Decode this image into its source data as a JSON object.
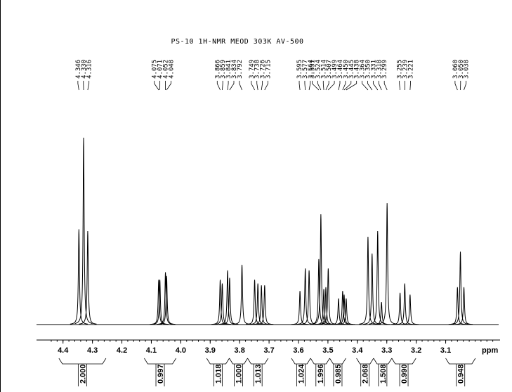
{
  "chart_data": {
    "type": "nmr",
    "title": "PS-10 1H-NMR  MEOD  303K AV-500",
    "x_label": "ppm",
    "xlim": [
      4.49,
      2.92
    ],
    "xticks": [
      4.4,
      4.3,
      4.2,
      4.1,
      {
        "value": 4,
        "label": "4.0"
      },
      3.9,
      3.8,
      3.7,
      3.6,
      3.5,
      3.4,
      3.3,
      3.2,
      3.1
    ],
    "color": "#000000",
    "peaks": [
      {
        "ppm": 4.346,
        "label": "4.346",
        "height": 51
      },
      {
        "ppm": 4.33,
        "label": "4.330",
        "height": 100
      },
      {
        "ppm": 4.316,
        "label": "4.316",
        "height": 50
      },
      {
        "ppm": 4.075,
        "label": "4.075",
        "height": 24
      },
      {
        "ppm": 4.071,
        "label": "4.071",
        "height": 24
      },
      {
        "ppm": 4.052,
        "label": "4.052",
        "height": 28
      },
      {
        "ppm": 4.048,
        "label": "4.048",
        "height": 26
      },
      {
        "ppm": 3.866,
        "label": "3.866",
        "height": 24
      },
      {
        "ppm": 3.859,
        "label": "3.859",
        "height": 22
      },
      {
        "ppm": 3.841,
        "label": "3.841",
        "height": 29
      },
      {
        "ppm": 3.834,
        "label": "3.834",
        "height": 25
      },
      {
        "ppm": 3.792,
        "label": "3.792",
        "height": 32
      },
      {
        "ppm": 3.749,
        "label": "3.749",
        "height": 24
      },
      {
        "ppm": 3.738,
        "label": "3.738",
        "height": 22
      },
      {
        "ppm": 3.726,
        "label": "3.726",
        "height": 21
      },
      {
        "ppm": 3.715,
        "label": "3.715",
        "height": 21
      },
      {
        "ppm": 3.595,
        "label": "3.595",
        "height": 18
      },
      {
        "ppm": 3.577,
        "label": "3.577",
        "height": 30
      },
      {
        "ppm": 3.564,
        "label": "3.564",
        "height": 29
      },
      {
        "ppm": 3.531,
        "label": "3.531",
        "height": 35
      },
      {
        "ppm": 3.524,
        "label": "3.524",
        "height": 59
      },
      {
        "ppm": 3.514,
        "label": "3.514",
        "height": 19
      },
      {
        "ppm": 3.507,
        "label": "3.507",
        "height": 20
      },
      {
        "ppm": 3.499,
        "label": "3.499",
        "height": 30
      },
      {
        "ppm": 3.464,
        "label": "3.464",
        "height": 14
      },
      {
        "ppm": 3.45,
        "label": "3.450",
        "height": 18
      },
      {
        "ppm": 3.445,
        "label": "3.445",
        "height": 16
      },
      {
        "ppm": 3.438,
        "label": "3.438",
        "height": 14
      },
      {
        "ppm": 3.364,
        "label": "3.364",
        "height": 47
      },
      {
        "ppm": 3.35,
        "label": "3.350",
        "height": 38
      },
      {
        "ppm": 3.331,
        "label": "3.331",
        "height": 50
      },
      {
        "ppm": 3.318,
        "label": "3.318",
        "height": 12
      },
      {
        "ppm": 3.299,
        "label": "3.299",
        "height": 65
      },
      {
        "ppm": 3.255,
        "label": "3.255",
        "height": 17
      },
      {
        "ppm": 3.239,
        "label": "3.239",
        "height": 22
      },
      {
        "ppm": 3.221,
        "label": "3.221",
        "height": 16
      },
      {
        "ppm": 3.06,
        "label": "3.060",
        "height": 20
      },
      {
        "ppm": 3.05,
        "label": "3.050",
        "height": 39
      },
      {
        "ppm": 3.038,
        "label": "3.038",
        "height": 20
      }
    ],
    "integrals": [
      {
        "from": 4.414,
        "to": 4.254,
        "value": 2,
        "label": "2.000"
      },
      {
        "from": 4.124,
        "to": 4.016,
        "value": 0.997,
        "label": "0.997"
      },
      {
        "from": 3.912,
        "to": 3.835,
        "value": 1.018,
        "label": "1.018"
      },
      {
        "from": 3.835,
        "to": 3.773,
        "value": 1,
        "label": "1.000"
      },
      {
        "from": 3.773,
        "to": 3.703,
        "value": 1.013,
        "label": "1.013"
      },
      {
        "from": 3.624,
        "to": 3.559,
        "value": 1.024,
        "label": "1.024"
      },
      {
        "from": 3.559,
        "to": 3.494,
        "value": 1.996,
        "label": "1.996"
      },
      {
        "from": 3.494,
        "to": 3.439,
        "value": 0.985,
        "label": "0.985"
      },
      {
        "from": 3.403,
        "to": 3.345,
        "value": 2.068,
        "label": "2.068"
      },
      {
        "from": 3.345,
        "to": 3.283,
        "value": 1.508,
        "label": "1.508"
      },
      {
        "from": 3.283,
        "to": 3.201,
        "value": 0.99,
        "label": "0.990"
      },
      {
        "from": 3.1,
        "to": 2.999,
        "value": 0.948,
        "label": "0.948"
      }
    ]
  }
}
